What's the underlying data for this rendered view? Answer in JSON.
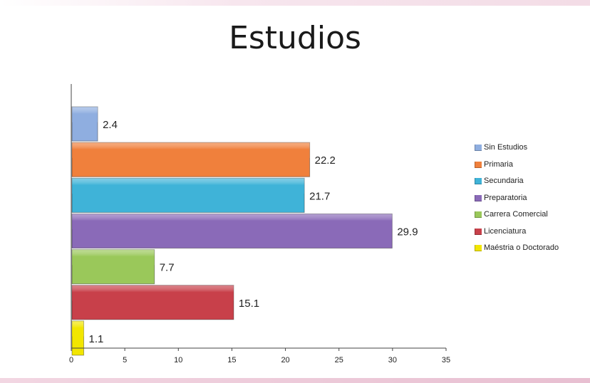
{
  "chart_data": {
    "type": "bar",
    "orientation": "horizontal",
    "title": "Estudios",
    "xlabel": "",
    "ylabel": "",
    "xlim": [
      0,
      35
    ],
    "xticks": [
      0,
      5,
      10,
      15,
      20,
      25,
      30,
      35
    ],
    "grid": false,
    "legend_position": "right",
    "series": [
      {
        "name": "Sin Estudios",
        "value": 2.4,
        "label": "2.4",
        "color": "#8faee0"
      },
      {
        "name": "Primaria",
        "value": 22.2,
        "label": "22.2",
        "color": "#f0803c"
      },
      {
        "name": "Secundaria",
        "value": 21.7,
        "label": "21.7",
        "color": "#3fb3d8"
      },
      {
        "name": "Preparatoria",
        "value": 29.9,
        "label": "29.9",
        "color": "#8a6ab8"
      },
      {
        "name": "Carrera Comercial",
        "value": 7.7,
        "label": "7.7",
        "color": "#9ac85a"
      },
      {
        "name": "Licenciatura",
        "value": 15.1,
        "label": "15.1",
        "color": "#c8404a"
      },
      {
        "name": "Maéstria o Doctorado",
        "value": 1.1,
        "label": "1.1",
        "color": "#f2e600"
      }
    ]
  }
}
